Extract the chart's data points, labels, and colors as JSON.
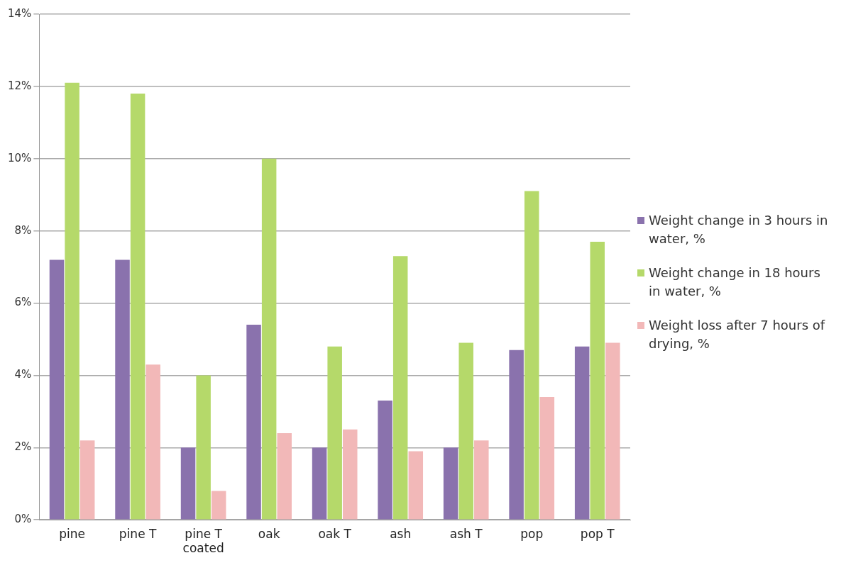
{
  "chart_data": {
    "type": "bar",
    "categories": [
      "pine",
      "pine T",
      "pine T coated",
      "oak",
      "oak T",
      "ash",
      "ash T",
      "pop",
      "pop T"
    ],
    "series": [
      {
        "name": "Weight change in 3 hours in water, %",
        "color": "#8a72ad",
        "values": [
          7.2,
          7.2,
          2.0,
          5.4,
          2.0,
          3.3,
          2.0,
          4.7,
          4.8
        ]
      },
      {
        "name": "Weight change in 18 hours in water, %",
        "color": "#b5d96a",
        "values": [
          12.1,
          11.8,
          4.0,
          10.0,
          4.8,
          7.3,
          4.9,
          9.1,
          7.7
        ]
      },
      {
        "name": "Weight loss after 7 hours of drying, %",
        "color": "#f2b8b8",
        "values": [
          2.2,
          4.3,
          0.8,
          2.4,
          2.5,
          1.9,
          2.2,
          3.4,
          4.9
        ]
      }
    ],
    "ylim": [
      0,
      14
    ],
    "yticks": [
      {
        "value": 0,
        "label": "0%"
      },
      {
        "value": 2,
        "label": "2%"
      },
      {
        "value": 4,
        "label": "4%"
      },
      {
        "value": 6,
        "label": "6%"
      },
      {
        "value": 8,
        "label": "8%"
      },
      {
        "value": 10,
        "label": "10%"
      },
      {
        "value": 12,
        "label": "12%"
      },
      {
        "value": 14,
        "label": "14%"
      }
    ],
    "grid": "y",
    "legend": "right"
  }
}
